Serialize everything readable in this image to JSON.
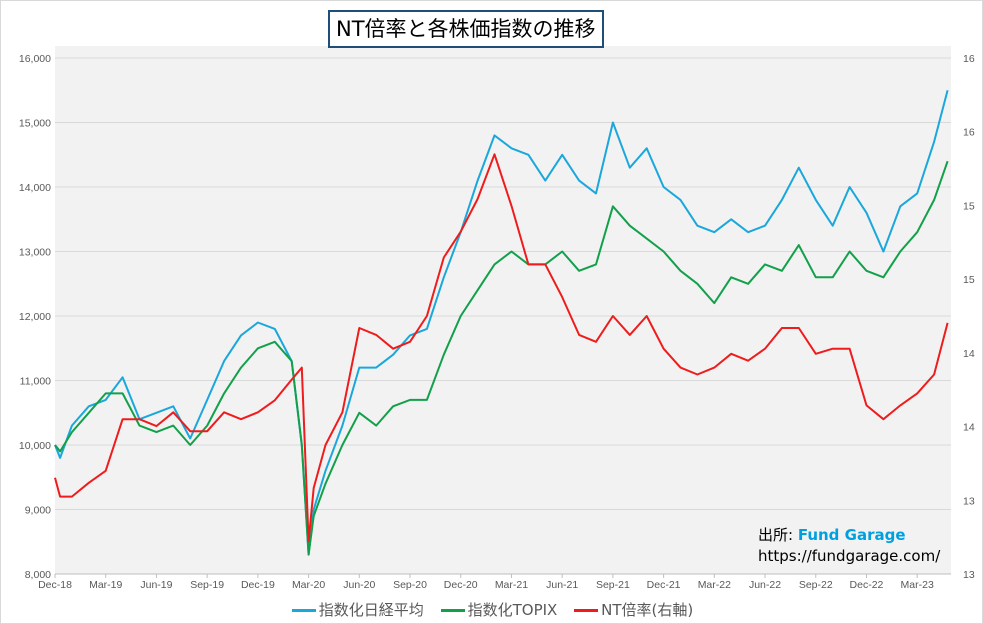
{
  "chart_data": {
    "type": "line",
    "title": "NT倍率と各株価指数の推移",
    "x_unit": "months since Dec-18",
    "x_ticks": [
      "Dec-18",
      "Mar-19",
      "Jun-19",
      "Sep-19",
      "Dec-19",
      "Mar-20",
      "Jun-20",
      "Sep-20",
      "Dec-20",
      "Mar-21",
      "Jun-21",
      "Sep-21",
      "Dec-21",
      "Mar-22",
      "Jun-22",
      "Sep-22",
      "Dec-22",
      "Mar-23"
    ],
    "xlim": [
      0,
      53
    ],
    "y_left": {
      "ylim": [
        8000,
        16000
      ],
      "ticks": [
        "8,000",
        "9,000",
        "10,000",
        "11,000",
        "12,000",
        "13,000",
        "14,000",
        "15,000",
        "16,000"
      ],
      "tick_values": [
        8000,
        9000,
        10000,
        11000,
        12000,
        13000,
        14000,
        15000,
        16000
      ]
    },
    "y_right": {
      "ylim": [
        13,
        16
      ],
      "ticks": [
        "13",
        "13",
        "14",
        "14",
        "15",
        "15",
        "16",
        "16"
      ]
    },
    "grid": true,
    "legend_position": "bottom",
    "x": [
      0,
      0.3,
      1,
      2,
      3,
      4,
      5,
      6,
      7,
      8,
      9,
      10,
      11,
      12,
      13,
      14,
      14.6,
      15,
      15.3,
      16,
      17,
      18,
      19,
      20,
      21,
      22,
      23,
      24,
      25,
      26,
      27,
      28,
      29,
      30,
      31,
      32,
      33,
      34,
      35,
      36,
      37,
      38,
      39,
      40,
      41,
      42,
      43,
      44,
      45,
      46,
      47,
      48,
      49,
      50,
      51,
      52,
      52.8
    ],
    "series": [
      {
        "name": "指数化日経平均",
        "axis": "left",
        "color": "#1aa7dc",
        "values": [
          10000,
          9800,
          10300,
          10600,
          10700,
          11050,
          10400,
          10500,
          10600,
          10100,
          10700,
          11300,
          11700,
          11900,
          11800,
          11300,
          10000,
          8300,
          9000,
          9600,
          10300,
          11200,
          11200,
          11400,
          11700,
          11800,
          12600,
          13300,
          14100,
          14800,
          14600,
          14500,
          14100,
          14500,
          14100,
          13900,
          15000,
          14300,
          14600,
          14000,
          13800,
          13400,
          13300,
          13500,
          13300,
          13400,
          13800,
          14300,
          13800,
          13400,
          14000,
          13600,
          13000,
          13700,
          13900,
          14700,
          15500
        ]
      },
      {
        "name": "指数化TOPIX",
        "axis": "left",
        "color": "#13a04a",
        "values": [
          10000,
          9900,
          10200,
          10500,
          10800,
          10800,
          10300,
          10200,
          10300,
          10000,
          10300,
          10800,
          11200,
          11500,
          11600,
          11300,
          10000,
          8300,
          8900,
          9400,
          10000,
          10500,
          10300,
          10600,
          10700,
          10700,
          11400,
          12000,
          12400,
          12800,
          13000,
          12800,
          12800,
          13000,
          12700,
          12800,
          13700,
          13400,
          13200,
          13000,
          12700,
          12500,
          12200,
          12600,
          12500,
          12800,
          12700,
          13100,
          12600,
          12600,
          13000,
          12700,
          12600,
          13000,
          13300,
          13800,
          14400
        ]
      },
      {
        "name": "NT倍率(右軸)",
        "axis": "right",
        "color": "#ee1c1c",
        "values": [
          13.56,
          13.45,
          13.45,
          13.53,
          13.6,
          13.9,
          13.9,
          13.86,
          13.94,
          13.83,
          13.83,
          13.94,
          13.9,
          13.94,
          14.01,
          14.13,
          14.2,
          13.19,
          13.5,
          13.75,
          13.94,
          14.43,
          14.39,
          14.31,
          14.35,
          14.5,
          14.84,
          14.99,
          15.18,
          15.44,
          15.14,
          14.8,
          14.8,
          14.61,
          14.39,
          14.35,
          14.5,
          14.39,
          14.5,
          14.31,
          14.2,
          14.16,
          14.2,
          14.28,
          14.24,
          14.31,
          14.43,
          14.43,
          14.28,
          14.31,
          14.31,
          13.98,
          13.9,
          13.98,
          14.05,
          14.16,
          14.46
        ]
      }
    ]
  },
  "source": {
    "label": "出所: ",
    "brand": "Fund Garage",
    "url": "https://fundgarage.com/"
  }
}
